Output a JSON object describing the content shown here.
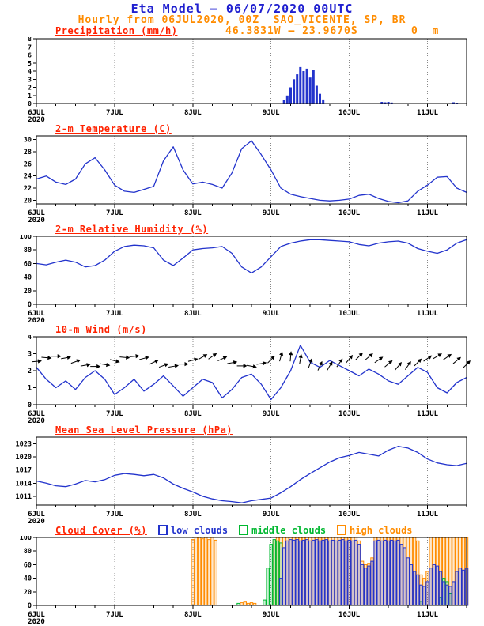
{
  "header": {
    "title": "Eta Model – 06/07/2020 00UTC",
    "subtitle": "Hourly from 06JUL2020, 00Z  SAO_VICENTE, SP, BR",
    "coords": "46.3831W – 23.9670S",
    "elevation": "0  m"
  },
  "colors": {
    "title_blue": "#2020d0",
    "orange": "#ff8c00",
    "panel_title_red": "#ff2200",
    "line_blue": "#2233cc",
    "grid_gray": "#888888"
  },
  "chart_meta": {
    "hours_total": 132,
    "minor_step": 6,
    "grid_hours": [
      24,
      48,
      72,
      96,
      120
    ],
    "x_ticks": [
      {
        "h": 0,
        "label": "6JUL",
        "sub": "2020"
      },
      {
        "h": 24,
        "label": "7JUL"
      },
      {
        "h": 48,
        "label": "8JUL"
      },
      {
        "h": 72,
        "label": "9JUL"
      },
      {
        "h": 96,
        "label": "10JUL"
      },
      {
        "h": 120,
        "label": "11JUL"
      }
    ]
  },
  "chart_data": [
    {
      "type": "bar",
      "title": "Precipitation (mm/h)",
      "ylabel": "mm/h",
      "ylim": [
        0,
        8
      ],
      "yticks": [
        0,
        1,
        2,
        3,
        4,
        5,
        6,
        7,
        8
      ],
      "ytick_size": 8,
      "color": "#2233cc",
      "points": [
        [
          76,
          0.4
        ],
        [
          77,
          1.0
        ],
        [
          78,
          2.0
        ],
        [
          79,
          3.0
        ],
        [
          80,
          3.6
        ],
        [
          81,
          4.5
        ],
        [
          82,
          4.0
        ],
        [
          83,
          4.3
        ],
        [
          84,
          3.2
        ],
        [
          85,
          4.1
        ],
        [
          86,
          2.2
        ],
        [
          87,
          1.2
        ],
        [
          88,
          0.5
        ],
        [
          106,
          0.2
        ],
        [
          107,
          0.15
        ],
        [
          108,
          0.2
        ],
        [
          109,
          0.12
        ],
        [
          128,
          0.15
        ],
        [
          129,
          0.1
        ]
      ]
    },
    {
      "type": "line",
      "title": "2-m Temperature (C)",
      "ylabel": "C",
      "ylim": [
        19.4,
        30.6
      ],
      "yticks": [
        20,
        22,
        24,
        26,
        28,
        30
      ],
      "ytick_size": 8.5,
      "color": "#2233cc",
      "x_step": 3,
      "values": [
        23.5,
        24,
        23,
        22.6,
        23.5,
        26,
        27,
        25,
        22.5,
        21.5,
        21.3,
        21.8,
        22.3,
        26.5,
        28.8,
        25,
        22.7,
        23,
        22.6,
        22,
        24.5,
        28.5,
        29.8,
        27.5,
        25,
        22,
        21,
        20.6,
        20.3,
        20,
        19.9,
        20,
        20.2,
        20.8,
        21,
        20.3,
        19.8,
        19.6,
        19.9,
        21.5,
        22.5,
        23.8,
        23.9,
        22,
        21.3
      ]
    },
    {
      "type": "line",
      "title": "2-m Relative Humidity (%)",
      "ylabel": "%",
      "ylim": [
        0,
        100
      ],
      "yticks": [
        0,
        20,
        40,
        60,
        80,
        100
      ],
      "ytick_size": 8.5,
      "color": "#2233cc",
      "x_step": 3,
      "values": [
        60,
        58,
        62,
        65,
        62,
        55,
        57,
        65,
        78,
        85,
        87,
        86,
        83,
        65,
        57,
        68,
        80,
        82,
        83,
        85,
        75,
        55,
        46,
        55,
        70,
        85,
        90,
        93,
        95,
        95,
        94,
        93,
        92,
        88,
        86,
        90,
        92,
        93,
        90,
        82,
        78,
        75,
        80,
        90,
        95
      ]
    },
    {
      "type": "wind",
      "title": "10-m Wind (m/s)",
      "ylabel": "m/s",
      "ylim": [
        0,
        4
      ],
      "yticks": [
        0,
        1,
        2,
        3,
        4
      ],
      "ytick_size": 8.5,
      "color": "#2233cc",
      "x_step": 3,
      "arrow_level": 2.55,
      "speed": [
        2.2,
        1.5,
        1.0,
        1.4,
        0.9,
        1.6,
        2.0,
        1.5,
        0.6,
        1.0,
        1.5,
        0.8,
        1.2,
        1.7,
        1.1,
        0.5,
        1.0,
        1.5,
        1.3,
        0.4,
        0.9,
        1.6,
        1.8,
        1.2,
        0.3,
        1.0,
        2.0,
        3.5,
        2.5,
        2.2,
        2.6,
        2.3,
        2.0,
        1.7,
        2.1,
        1.8,
        1.4,
        1.2,
        1.7,
        2.2,
        1.9,
        1.0,
        0.7,
        1.3,
        1.6
      ],
      "arrow_dir": [
        5,
        -5,
        0,
        10,
        20,
        10,
        0,
        -10,
        -15,
        -5,
        5,
        15,
        25,
        20,
        10,
        0,
        15,
        30,
        35,
        25,
        10,
        0,
        -10,
        10,
        45,
        75,
        85,
        80,
        70,
        65,
        60,
        55,
        50,
        45,
        40,
        35,
        40,
        50,
        55,
        45,
        35,
        30,
        35,
        40,
        45
      ]
    },
    {
      "type": "line",
      "title": "Mean Sea Level Pressure (hPa)",
      "ylabel": "hPa",
      "ylim": [
        1009,
        1024.5
      ],
      "yticks": [
        1011,
        1014,
        1017,
        1020,
        1023
      ],
      "ytick_size": 8.5,
      "color": "#2233cc",
      "x_step": 3,
      "values": [
        1014.5,
        1014,
        1013.4,
        1013.2,
        1013.8,
        1014.6,
        1014.3,
        1014.8,
        1015.8,
        1016.2,
        1016,
        1015.7,
        1016,
        1015.2,
        1013.8,
        1012.8,
        1012,
        1011,
        1010.4,
        1010,
        1009.8,
        1009.5,
        1010,
        1010.3,
        1010.6,
        1011.8,
        1013.2,
        1014.8,
        1016.2,
        1017.5,
        1018.8,
        1019.8,
        1020.3,
        1021,
        1020.6,
        1020.2,
        1021.5,
        1022.4,
        1022,
        1021,
        1019.5,
        1018.6,
        1018.2,
        1018,
        1018.5
      ]
    },
    {
      "type": "cloud",
      "title": "Cloud Cover (%)",
      "legend_title": "Cloud Cover (%)",
      "ylabel": "%",
      "ylim": [
        0,
        100
      ],
      "yticks": [
        0,
        20,
        40,
        60,
        80,
        100
      ],
      "ytick_size": 8.5,
      "series": [
        {
          "name": "low clouds",
          "color": "#2233cc",
          "points": [
            [
              75,
              40
            ],
            [
              76,
              85
            ],
            [
              77,
              95
            ],
            [
              78,
              97
            ],
            [
              79,
              96
            ],
            [
              80,
              97
            ],
            [
              81,
              95
            ],
            [
              82,
              96
            ],
            [
              83,
              97
            ],
            [
              84,
              95
            ],
            [
              85,
              96
            ],
            [
              86,
              97
            ],
            [
              87,
              95
            ],
            [
              88,
              96
            ],
            [
              89,
              97
            ],
            [
              90,
              95
            ],
            [
              91,
              96
            ],
            [
              92,
              95
            ],
            [
              93,
              96
            ],
            [
              94,
              97
            ],
            [
              95,
              95
            ],
            [
              96,
              96
            ],
            [
              97,
              95
            ],
            [
              98,
              96
            ],
            [
              99,
              90
            ],
            [
              100,
              60
            ],
            [
              101,
              55
            ],
            [
              102,
              58
            ],
            [
              103,
              65
            ],
            [
              104,
              95
            ],
            [
              105,
              96
            ],
            [
              106,
              95
            ],
            [
              107,
              96
            ],
            [
              108,
              95
            ],
            [
              109,
              96
            ],
            [
              110,
              95
            ],
            [
              111,
              96
            ],
            [
              112,
              90
            ],
            [
              113,
              85
            ],
            [
              114,
              70
            ],
            [
              115,
              60
            ],
            [
              116,
              50
            ],
            [
              117,
              45
            ],
            [
              118,
              30
            ],
            [
              119,
              28
            ],
            [
              120,
              35
            ],
            [
              121,
              55
            ],
            [
              122,
              60
            ],
            [
              123,
              58
            ],
            [
              124,
              50
            ],
            [
              125,
              35
            ],
            [
              126,
              30
            ],
            [
              127,
              28
            ],
            [
              128,
              35
            ],
            [
              129,
              50
            ],
            [
              130,
              55
            ],
            [
              131,
              52
            ],
            [
              132,
              55
            ]
          ]
        },
        {
          "name": "middle clouds",
          "color": "#00b830",
          "points": [
            [
              62,
              3
            ],
            [
              70,
              8
            ],
            [
              71,
              55
            ],
            [
              72,
              90
            ],
            [
              73,
              97
            ],
            [
              74,
              95
            ],
            [
              75,
              92
            ],
            [
              118,
              6
            ],
            [
              124,
              12
            ],
            [
              125,
              40
            ],
            [
              126,
              35
            ],
            [
              127,
              18
            ]
          ]
        },
        {
          "name": "high clouds",
          "color": "#ff8c00",
          "points": [
            [
              48,
              97
            ],
            [
              49,
              100
            ],
            [
              50,
              100
            ],
            [
              51,
              98
            ],
            [
              52,
              100
            ],
            [
              53,
              97
            ],
            [
              54,
              100
            ],
            [
              55,
              96
            ],
            [
              63,
              4
            ],
            [
              64,
              5
            ],
            [
              65,
              3
            ],
            [
              66,
              4
            ],
            [
              67,
              3
            ],
            [
              73,
              95
            ],
            [
              74,
              100
            ],
            [
              75,
              100
            ],
            [
              76,
              100
            ],
            [
              77,
              100
            ],
            [
              78,
              100
            ],
            [
              79,
              100
            ],
            [
              80,
              100
            ],
            [
              81,
              100
            ],
            [
              82,
              100
            ],
            [
              83,
              100
            ],
            [
              84,
              100
            ],
            [
              85,
              100
            ],
            [
              86,
              100
            ],
            [
              87,
              100
            ],
            [
              88,
              100
            ],
            [
              89,
              100
            ],
            [
              90,
              100
            ],
            [
              91,
              100
            ],
            [
              92,
              100
            ],
            [
              93,
              100
            ],
            [
              94,
              100
            ],
            [
              95,
              100
            ],
            [
              96,
              100
            ],
            [
              97,
              100
            ],
            [
              98,
              100
            ],
            [
              99,
              95
            ],
            [
              100,
              65
            ],
            [
              101,
              60
            ],
            [
              102,
              62
            ],
            [
              103,
              70
            ],
            [
              104,
              100
            ],
            [
              105,
              100
            ],
            [
              106,
              100
            ],
            [
              107,
              100
            ],
            [
              108,
              100
            ],
            [
              109,
              100
            ],
            [
              110,
              100
            ],
            [
              111,
              100
            ],
            [
              112,
              100
            ],
            [
              113,
              100
            ],
            [
              114,
              100
            ],
            [
              115,
              100
            ],
            [
              116,
              100
            ],
            [
              117,
              95
            ],
            [
              118,
              45
            ],
            [
              119,
              40
            ],
            [
              120,
              50
            ],
            [
              121,
              100
            ],
            [
              122,
              100
            ],
            [
              123,
              100
            ],
            [
              124,
              100
            ],
            [
              125,
              100
            ],
            [
              126,
              100
            ],
            [
              127,
              100
            ],
            [
              128,
              100
            ],
            [
              129,
              100
            ],
            [
              130,
              100
            ],
            [
              131,
              100
            ],
            [
              132,
              100
            ]
          ]
        }
      ]
    }
  ]
}
